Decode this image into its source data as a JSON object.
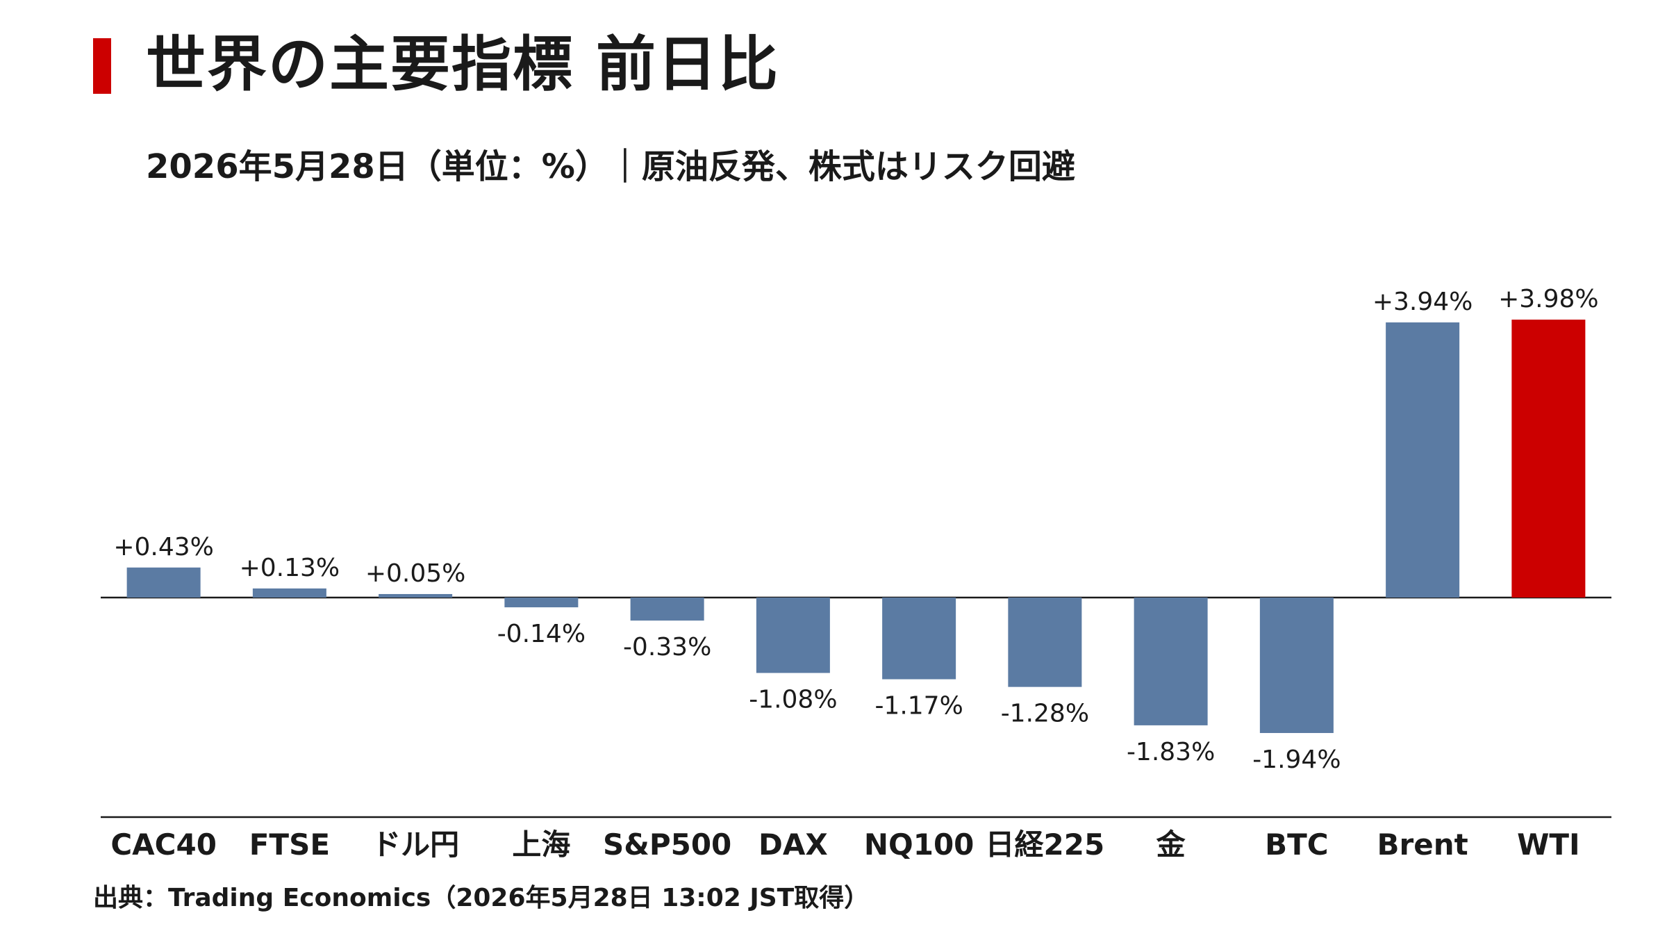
{
  "header": {
    "title": "世界の主要指標 前日比",
    "subtitle": "2026年5月28日（単位：%）｜原油反発、株式はリスク回避",
    "accent_color": "#cc0000"
  },
  "footer": {
    "source": "出典：Trading Economics（2026年5月28日 13:02 JST取得）"
  },
  "chart_data": {
    "type": "bar",
    "title": "世界の主要指標 前日比",
    "subtitle": "2026年5月28日（単位：%）｜原油反発、株式はリスク回避",
    "xlabel": "",
    "ylabel": "",
    "categories": [
      "CAC40",
      "FTSE",
      "ドル円",
      "上海",
      "S&P500",
      "DAX",
      "NQ100",
      "日経225",
      "金",
      "BTC",
      "Brent",
      "WTI"
    ],
    "values": [
      0.43,
      0.13,
      0.05,
      -0.14,
      -0.33,
      -1.08,
      -1.17,
      -1.28,
      -1.83,
      -1.94,
      3.94,
      3.98
    ],
    "value_labels": [
      "+0.43%",
      "+0.13%",
      "+0.05%",
      "-0.14%",
      "-0.33%",
      "-1.08%",
      "-1.17%",
      "-1.28%",
      "-1.83%",
      "-1.94%",
      "+3.94%",
      "+3.98%"
    ],
    "bar_color": "#5b7ba3",
    "highlight_color": "#cc0000",
    "highlight_index": 11,
    "grid": false,
    "legend": "none"
  }
}
